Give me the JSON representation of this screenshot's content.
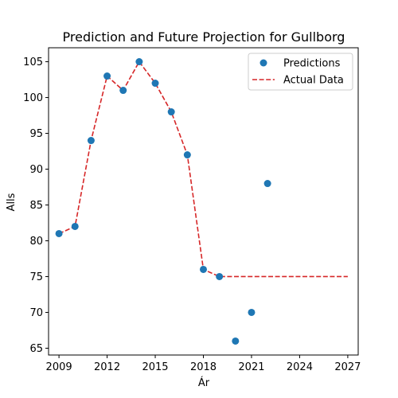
{
  "chart_data": {
    "type": "scatter",
    "title": "Prediction and Future Projection for Gullborg",
    "xlabel": "Ár",
    "ylabel": "Alls",
    "xlim": [
      2008.35,
      2027.65
    ],
    "ylim": [
      64.05,
      106.95
    ],
    "xticks": [
      2009,
      2012,
      2015,
      2018,
      2021,
      2024,
      2027
    ],
    "yticks": [
      65,
      70,
      75,
      80,
      85,
      90,
      95,
      100,
      105
    ],
    "grid": false,
    "legend_position": "top-right",
    "series": [
      {
        "name": "Predictions",
        "kind": "scatter",
        "color": "#1f77b4",
        "x": [
          2009,
          2010,
          2011,
          2012,
          2013,
          2014,
          2015,
          2016,
          2017,
          2018,
          2019,
          2020,
          2021,
          2022
        ],
        "y": [
          81,
          82,
          94,
          103,
          101,
          105,
          102,
          98,
          92,
          76,
          75,
          66,
          70,
          88
        ]
      },
      {
        "name": "Actual Data",
        "kind": "line",
        "style": "dashed",
        "color": "#d62728",
        "x": [
          2009,
          2010,
          2011,
          2012,
          2013,
          2014,
          2015,
          2016,
          2017,
          2018,
          2019,
          2020,
          2021,
          2022,
          2023,
          2024,
          2025,
          2026,
          2027
        ],
        "y": [
          81,
          82,
          94,
          103,
          101,
          105,
          102,
          98,
          92,
          76,
          75,
          75,
          75,
          75,
          75,
          75,
          75,
          75,
          75
        ]
      }
    ]
  }
}
